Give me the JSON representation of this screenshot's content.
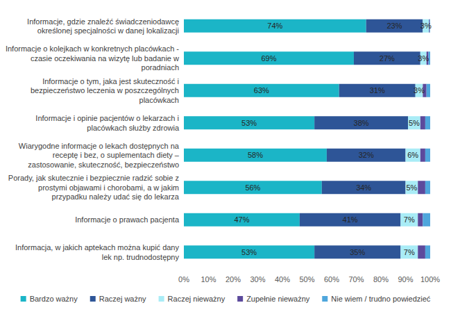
{
  "chart_data": {
    "type": "bar",
    "orientation": "horizontal",
    "stacked": true,
    "data_labels": true,
    "grid": false,
    "legend": "bottom",
    "categories": [
      "Informacje, gdzie znaleźć świadczeniodawcę określonej specjalności w danej lokalizacji",
      "Informacje o kolejkach w konkretnych placówkach - czasie oczekiwania na wizytę lub badanie w poradniach",
      "Informacje o tym, jaka jest skuteczność i bezpieczeństwo leczenia w poszczególnych placówkach",
      "Informacje i opinie pacjentów o lekarzach i placówkach służby zdrowia",
      "Wiarygodne informacje o lekach dostępnych na receptę i bez, o suplementach diety – zastosowanie, skuteczność, bezpieczeństwo",
      "Porady, jak skutecznie i bezpiecznie radzić sobie z prostymi objawami i chorobami, a w jakim przypadku należy udać się do lekarza",
      "Informacje o prawach pacjenta",
      "Informacja, w jakich aptekach można kupić dany lek np. trudnodostępny"
    ],
    "series": [
      {
        "name": "Bardzo ważny",
        "color": "#1bb5c7",
        "values": [
          74,
          69,
          63,
          53,
          58,
          56,
          47,
          53
        ],
        "value_labels": [
          "74%",
          "69%",
          "63%",
          "53%",
          "58%",
          "56%",
          "47%",
          "53%"
        ]
      },
      {
        "name": "Raczej ważny",
        "color": "#2e5597",
        "values": [
          23,
          27,
          31,
          38,
          32,
          34,
          41,
          35
        ],
        "value_labels": [
          "23%",
          "27%",
          "31%",
          "38%",
          "32%",
          "34%",
          "41%",
          "35%"
        ]
      },
      {
        "name": "Raczej nieważny",
        "color": "#a9ecf6",
        "values": [
          2.5,
          2.5,
          3,
          5,
          6,
          5,
          7,
          7
        ],
        "value_labels": [
          "3%",
          "3%",
          "3%",
          "5%",
          "6%",
          "5%",
          "7%",
          "7%"
        ]
      },
      {
        "name": "Zupełnie nieważny",
        "color": "#5c4a9c",
        "values": [
          0.3,
          0.8,
          1.5,
          2,
          2,
          3,
          2,
          3
        ],
        "value_labels": [
          null,
          null,
          null,
          null,
          null,
          null,
          null,
          null
        ]
      },
      {
        "name": "Nie wiem / trudno powiedzieć",
        "color": "#4fa6dc",
        "values": [
          0.2,
          0.7,
          1.5,
          2,
          2,
          2,
          3,
          2
        ],
        "value_labels": [
          null,
          null,
          null,
          null,
          null,
          null,
          null,
          null
        ]
      }
    ],
    "xlim": [
      0,
      100
    ],
    "xticks": [
      {
        "value": 0,
        "label": "0%"
      },
      {
        "value": 10,
        "label": "10%"
      },
      {
        "value": 20,
        "label": "20%"
      },
      {
        "value": 30,
        "label": "30%"
      },
      {
        "value": 40,
        "label": "40%"
      },
      {
        "value": 50,
        "label": "50%"
      },
      {
        "value": 60,
        "label": "60%"
      },
      {
        "value": 70,
        "label": "70%"
      },
      {
        "value": 80,
        "label": "80%"
      },
      {
        "value": 90,
        "label": "90%"
      },
      {
        "value": 100,
        "label": "100%"
      }
    ]
  }
}
